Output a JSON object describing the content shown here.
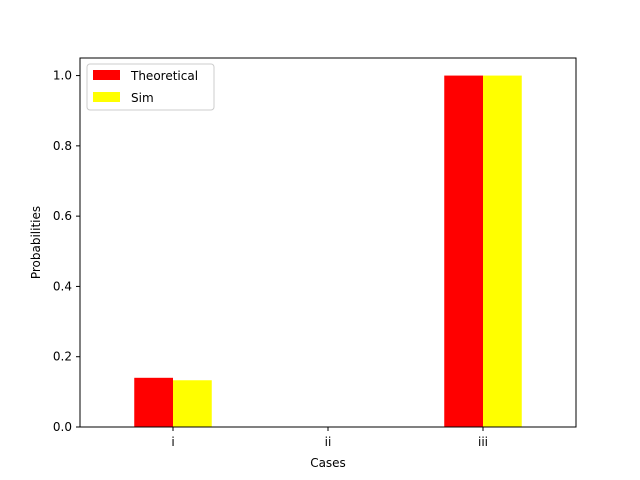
{
  "chart_data": {
    "type": "bar",
    "title": "",
    "xlabel": "Cases",
    "ylabel": "Probabilities",
    "categories": [
      "i",
      "ii",
      "iii"
    ],
    "series": [
      {
        "name": "Theoretical",
        "color": "#ff0000",
        "values": [
          0.14,
          0.0,
          1.0
        ]
      },
      {
        "name": "Sim",
        "color": "#ffff00",
        "values": [
          0.133,
          0.0,
          1.0
        ]
      }
    ],
    "ylim": [
      0,
      1.05
    ],
    "yticks": [
      "0.0",
      "0.2",
      "0.4",
      "0.6",
      "0.8",
      "1.0"
    ],
    "legend_position": "top-left",
    "grid": false
  }
}
